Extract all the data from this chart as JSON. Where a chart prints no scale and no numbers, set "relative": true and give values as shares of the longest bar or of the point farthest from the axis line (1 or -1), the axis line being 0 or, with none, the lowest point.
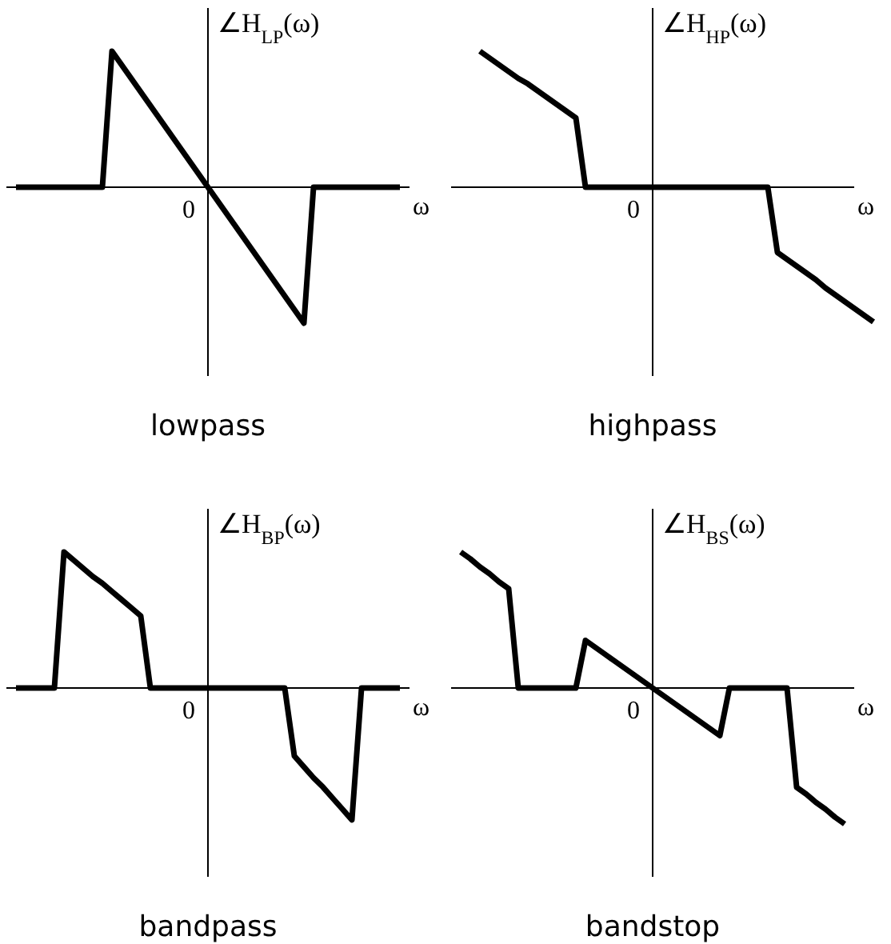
{
  "chart_data": [
    {
      "type": "line",
      "title": "lowpass",
      "xlabel": "ω",
      "ylabel": "∠H$_{LP}$(ω)",
      "relative": true,
      "annotations": [
        "0"
      ],
      "categories": [
        null,
        null,
        null,
        null,
        null,
        null,
        null,
        null,
        null,
        null,
        null,
        null,
        null,
        null,
        null,
        null,
        null,
        null,
        null,
        null,
        null,
        null,
        null,
        null,
        null,
        null,
        null,
        null,
        null,
        null,
        null,
        null,
        null,
        null,
        null,
        null,
        null,
        null,
        null,
        null,
        null
      ],
      "series": [
        {
          "color": "#000000",
          "values": [
            0,
            0,
            0,
            0,
            0,
            0,
            0,
            0,
            0,
            0,
            1,
            0.9,
            0.8,
            0.7,
            0.6,
            0.5,
            0.4,
            0.3,
            0.2,
            0.1,
            0,
            -0.1,
            -0.2,
            -0.3,
            -0.4,
            -0.5,
            -0.6,
            -0.7,
            -0.8,
            -0.9,
            -1,
            0,
            0,
            0,
            0,
            0,
            0,
            0,
            0,
            0,
            0
          ]
        }
      ]
    },
    {
      "type": "line",
      "title": "highpass",
      "xlabel": "ω",
      "ylabel": "∠H$_{HP}$(ω)",
      "relative": true,
      "annotations": [
        "0"
      ],
      "categories": [
        null,
        null,
        null,
        null,
        null,
        null,
        null,
        null,
        null,
        null,
        null,
        null,
        null,
        null,
        null,
        null,
        null,
        null,
        null,
        null,
        null,
        null,
        null,
        null,
        null,
        null,
        null,
        null,
        null,
        null,
        null,
        null,
        null,
        null,
        null,
        null,
        null,
        null,
        null,
        null,
        null,
        null,
        null,
        null,
        null,
        null,
        null
      ],
      "series": [
        {
          "color": "#000000",
          "values": [
            null,
            null,
            null,
            null,
            null,
            1,
            0.95,
            0.9,
            0.85,
            0.8,
            0.76,
            0.71,
            0.66,
            0.61,
            0.56,
            0.51,
            0,
            0,
            0,
            0,
            0,
            0,
            0,
            0,
            0,
            0,
            0,
            0,
            0,
            0,
            0,
            0,
            0,
            0,
            0,
            0,
            -0.48,
            -0.53,
            -0.58,
            -0.63,
            -0.68,
            -0.74,
            -0.79,
            -0.84,
            -0.89,
            -0.94,
            -0.99
          ]
        }
      ]
    },
    {
      "type": "line",
      "title": "bandpass",
      "xlabel": "ω",
      "ylabel": "∠H$_{BP}$(ω)",
      "relative": true,
      "annotations": [
        "0"
      ],
      "categories": [
        null,
        null,
        null,
        null,
        null,
        null,
        null,
        null,
        null,
        null,
        null,
        null,
        null,
        null,
        null,
        null,
        null,
        null,
        null,
        null,
        null,
        null,
        null,
        null,
        null,
        null,
        null,
        null,
        null,
        null,
        null,
        null,
        null,
        null,
        null,
        null,
        null,
        null,
        null,
        null,
        null
      ],
      "series": [
        {
          "color": "#000000",
          "values": [
            0,
            0,
            0,
            0,
            0,
            1,
            0.94,
            0.88,
            0.82,
            0.77,
            0.71,
            0.65,
            0.59,
            0.53,
            0,
            0,
            0,
            0,
            0,
            0,
            0,
            0,
            0,
            0,
            0,
            0,
            0,
            0,
            0,
            -0.5,
            -0.58,
            -0.66,
            -0.73,
            -0.81,
            -0.89,
            -0.97,
            0,
            0,
            0,
            0,
            0
          ]
        }
      ]
    },
    {
      "type": "line",
      "title": "bandstop",
      "xlabel": "ω",
      "ylabel": "∠H$_{BS}$(ω)",
      "relative": true,
      "annotations": [
        "0"
      ],
      "categories": [
        null,
        null,
        null,
        null,
        null,
        null,
        null,
        null,
        null,
        null,
        null,
        null,
        null,
        null,
        null,
        null,
        null,
        null,
        null,
        null,
        null,
        null,
        null,
        null,
        null,
        null,
        null,
        null,
        null,
        null,
        null,
        null,
        null,
        null,
        null,
        null,
        null,
        null,
        null,
        null,
        null
      ],
      "series": [
        {
          "color": "#000000",
          "values": [
            1,
            0.95,
            0.89,
            0.84,
            0.78,
            0.73,
            0,
            0,
            0,
            0,
            0,
            0,
            0,
            0.35,
            0.3,
            0.25,
            0.2,
            0.15,
            0.1,
            0.05,
            0,
            -0.05,
            -0.1,
            -0.15,
            -0.2,
            -0.25,
            -0.3,
            -0.35,
            0,
            0,
            0,
            0,
            0,
            0,
            0,
            -0.73,
            -0.78,
            -0.84,
            -0.89,
            -0.95,
            -1
          ]
        }
      ]
    }
  ]
}
